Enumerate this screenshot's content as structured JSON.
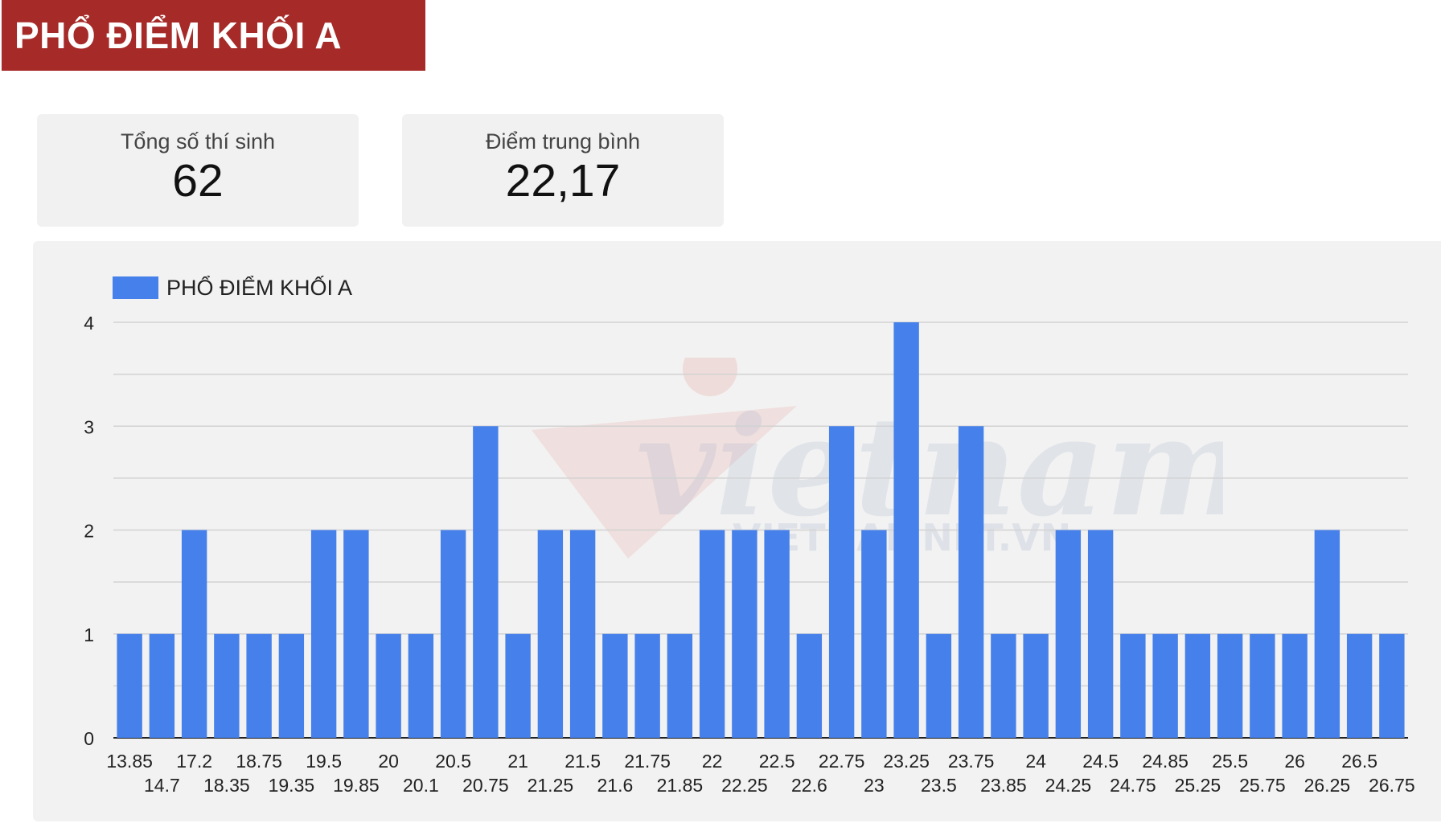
{
  "header": {
    "title": "PHỔ ĐIỂM KHỐI A"
  },
  "kpis": {
    "total": {
      "label": "Tổng số thí sinh",
      "value": "62"
    },
    "average": {
      "label": "Điểm trung bình",
      "value": "22,17"
    }
  },
  "watermark": {
    "text": "vietnam net",
    "subtext": "VIETNAMNET.VN"
  },
  "colors": {
    "bar": "#4680ea",
    "header": "#a52a28",
    "panel": "#f2f2f2",
    "grid": "#d0d0d0"
  },
  "chart_data": {
    "type": "bar",
    "legend": "PHỔ ĐIỂM KHỐI A",
    "legend_position": "top-left",
    "grid": true,
    "ylim": [
      0,
      4
    ],
    "yticks": [
      0,
      1,
      2,
      3,
      4
    ],
    "categories": [
      "13.85",
      "14.7",
      "17.2",
      "18.35",
      "18.75",
      "19.35",
      "19.5",
      "19.85",
      "20",
      "20.1",
      "20.5",
      "20.75",
      "21",
      "21.25",
      "21.5",
      "21.6",
      "21.75",
      "21.85",
      "22",
      "22.25",
      "22.5",
      "22.6",
      "22.75",
      "23",
      "23.25",
      "23.5",
      "23.75",
      "23.85",
      "24",
      "24.25",
      "24.5",
      "24.75",
      "24.85",
      "25.25",
      "25.5",
      "25.75",
      "26",
      "26.25",
      "26.5",
      "26.75"
    ],
    "series": [
      {
        "name": "PHỔ ĐIỂM KHỐI A",
        "values": [
          1,
          1,
          2,
          1,
          1,
          1,
          2,
          2,
          1,
          1,
          2,
          3,
          1,
          2,
          2,
          1,
          1,
          1,
          2,
          2,
          2,
          1,
          3,
          2,
          4,
          1,
          3,
          1,
          1,
          2,
          2,
          1,
          1,
          1,
          1,
          1,
          1,
          2,
          1,
          1
        ]
      }
    ]
  }
}
